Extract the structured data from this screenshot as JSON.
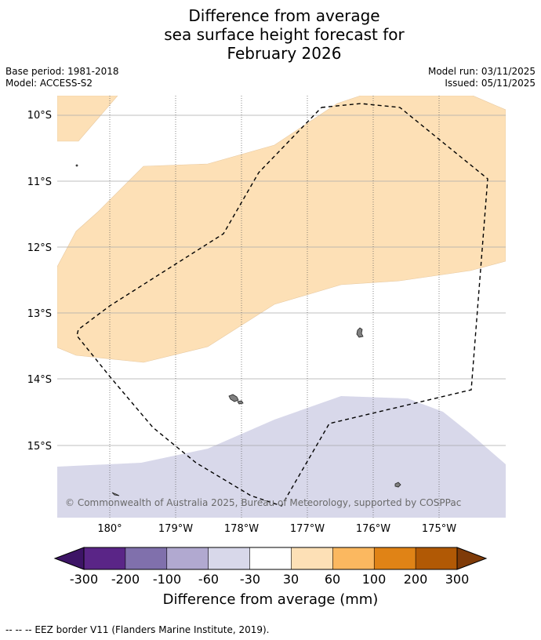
{
  "title": {
    "line1": "Difference from average",
    "line2": "sea surface height forecast for",
    "line3": "February 2026"
  },
  "meta": {
    "base_period": "Base period: 1981-2018",
    "model": "Model: ACCESS-S2",
    "model_run": "Model run: 03/11/2025",
    "issued": "Issued: 05/11/2025"
  },
  "map": {
    "lat_labels": [
      "10°S",
      "11°S",
      "12°S",
      "13°S",
      "14°S",
      "15°S"
    ],
    "lon_labels": [
      "180°",
      "179°W",
      "178°W",
      "177°W",
      "176°W",
      "175°W"
    ],
    "copyright": "© Commonwealth of Australia 2025, Bureau of Meteorology, supported by COSPPac",
    "colors": {
      "ocean_neutral": "#ffffff",
      "positive_30_60": "#fde0b6",
      "negative_60_30": "#d8d8ea",
      "grid": "#aaaaaa",
      "land": "#808080",
      "eez_border": "#000000"
    }
  },
  "legend": {
    "tick_labels": [
      "-300",
      "-200",
      "-100",
      "-60",
      "-30",
      "30",
      "60",
      "100",
      "200",
      "300"
    ],
    "bin_colors": [
      "#3d1466",
      "#5a2587",
      "#8070ac",
      "#b1a9d0",
      "#d8d8ea",
      "#ffffff",
      "#fde0b6",
      "#fbb860",
      "#e08316",
      "#b15905",
      "#7f3b08"
    ],
    "label": "Difference from average (mm)"
  },
  "footer": {
    "eez_note": "--  --  -- EEZ border V11 (Flanders Marine Institute, 2019)."
  }
}
